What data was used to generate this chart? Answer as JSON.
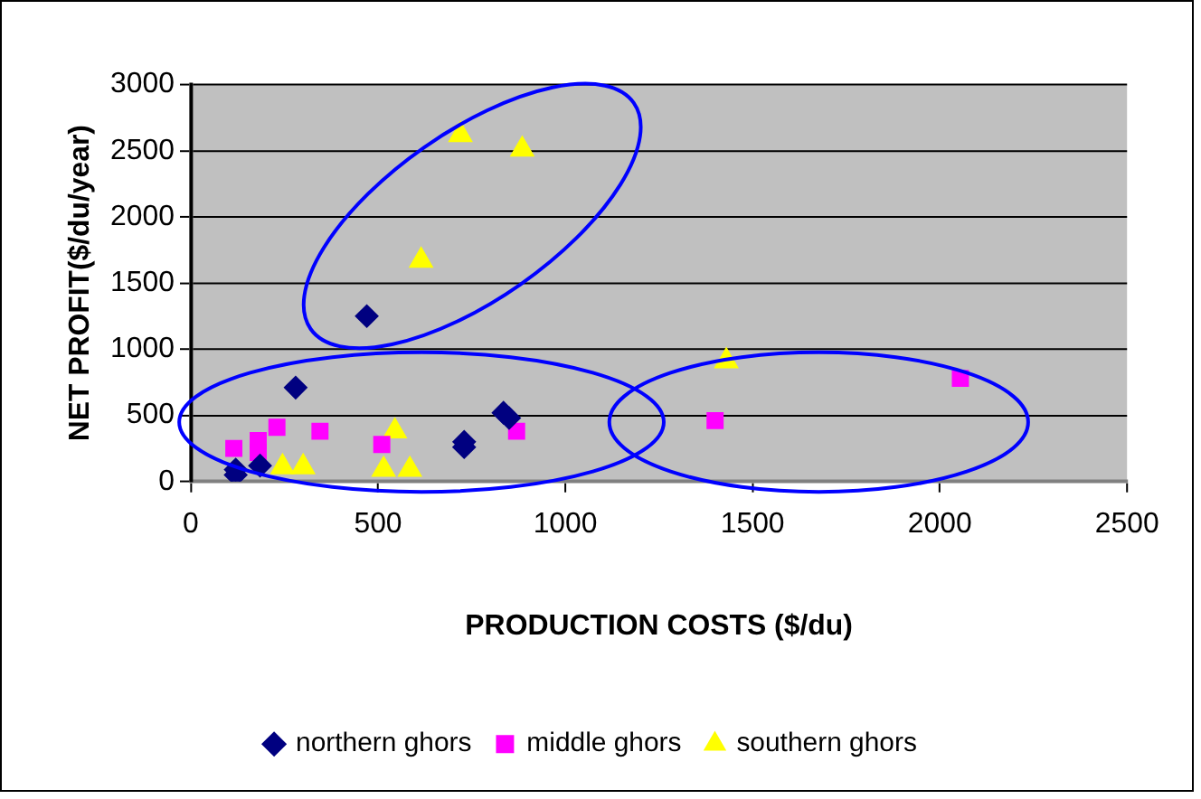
{
  "chart_data": {
    "type": "scatter",
    "xlabel": "PRODUCTION COSTS ($/du)",
    "ylabel": "NET PROFIT($/du/year)",
    "xlim": [
      0,
      2500
    ],
    "xticks": [
      0,
      500,
      1000,
      1500,
      2000,
      2500
    ],
    "ylim": [
      0,
      3000
    ],
    "yticks": [
      0,
      500,
      1000,
      1500,
      2000,
      2500,
      3000
    ],
    "grid": "y",
    "legend": "bottom",
    "series": [
      {
        "name": "northern ghors",
        "color": "#000080",
        "marker": "diamond",
        "x": [
          470,
          280,
          120,
          120,
          185,
          730,
          730,
          835,
          850
        ],
        "values": [
          1250,
          710,
          90,
          50,
          120,
          300,
          260,
          520,
          480
        ]
      },
      {
        "name": "middle ghors",
        "color": "#ff00ff",
        "marker": "square",
        "x": [
          115,
          180,
          180,
          230,
          345,
          510,
          870,
          1400,
          2055
        ],
        "values": [
          250,
          310,
          220,
          410,
          380,
          280,
          380,
          460,
          780
        ]
      },
      {
        "name": "southern ghors",
        "color": "#ffff00",
        "marker": "triangle",
        "x": [
          245,
          300,
          545,
          515,
          585,
          1430,
          720,
          885,
          615
        ],
        "values": [
          110,
          110,
          380,
          90,
          90,
          910,
          2620,
          2510,
          1670
        ]
      }
    ]
  }
}
